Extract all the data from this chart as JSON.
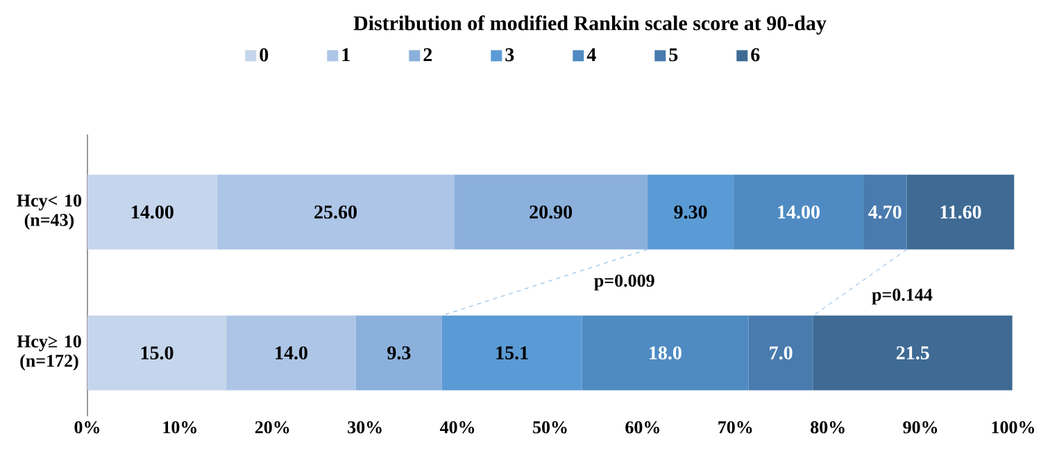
{
  "chart_data": {
    "type": "bar",
    "orientation": "horizontal",
    "stacked": true,
    "title": "Distribution of modified Rankin scale score  at 90-day",
    "categories": [
      "Hcy< 10 (n=43)",
      "Hcy≥ 10 (n=172)"
    ],
    "series": [
      {
        "name": "0",
        "color": "#c5d5eb",
        "values": [
          14.0,
          15.0
        ],
        "value_labels": [
          "14.00",
          "15.0"
        ]
      },
      {
        "name": "1",
        "color": "#adc5e6",
        "values": [
          25.6,
          14.0
        ],
        "value_labels": [
          "25.60",
          "14.0"
        ]
      },
      {
        "name": "2",
        "color": "#8cb0dc",
        "values": [
          20.9,
          9.3
        ],
        "value_labels": [
          "20.90",
          "9.3"
        ]
      },
      {
        "name": "3",
        "color": "#5b9bd5",
        "values": [
          9.3,
          15.1
        ],
        "value_labels": [
          "9.30",
          "15.1"
        ]
      },
      {
        "name": "4",
        "color": "#4f8bc2",
        "values": [
          14.0,
          18.0
        ],
        "value_labels": [
          "14.00",
          "18.0"
        ]
      },
      {
        "name": "5",
        "color": "#4a7bae",
        "values": [
          4.7,
          7.0
        ],
        "value_labels": [
          "4.70",
          "7.0"
        ]
      },
      {
        "name": "6",
        "color": "#3e6a94",
        "values": [
          11.6,
          21.5
        ],
        "value_labels": [
          "11.60",
          "21.5"
        ]
      }
    ],
    "xlim": [
      0,
      100
    ],
    "xticks": [
      {
        "value": 0,
        "label": "0%"
      },
      {
        "value": 10,
        "label": "10%"
      },
      {
        "value": 20,
        "label": "20%"
      },
      {
        "value": 30,
        "label": "30%"
      },
      {
        "value": 40,
        "label": "40%"
      },
      {
        "value": 50,
        "label": "50%"
      },
      {
        "value": 60,
        "label": "60%"
      },
      {
        "value": 70,
        "label": "70%"
      },
      {
        "value": 80,
        "label": "80%"
      },
      {
        "value": 90,
        "label": "90%"
      },
      {
        "value": 100,
        "label": "100%"
      }
    ],
    "annotations": [
      "p=0.009",
      "p=0.144"
    ],
    "legend": "top",
    "grid": false
  }
}
